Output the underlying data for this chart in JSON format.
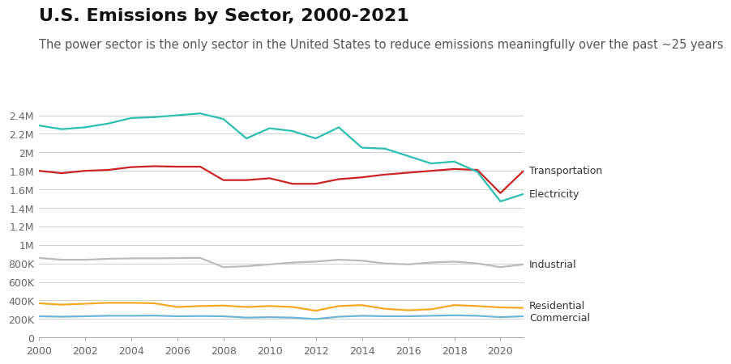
{
  "title": "U.S. Emissions by Sector, 2000-2021",
  "subtitle": "The power sector is the only sector in the United States to reduce emissions meaningfully over the past ~25 years",
  "years": [
    2000,
    2001,
    2002,
    2003,
    2004,
    2005,
    2006,
    2007,
    2008,
    2009,
    2010,
    2011,
    2012,
    2013,
    2014,
    2015,
    2016,
    2017,
    2018,
    2019,
    2020,
    2021
  ],
  "series": {
    "Transportation": {
      "color": "#cc2222",
      "values": [
        1800000,
        1775000,
        1800000,
        1810000,
        1840000,
        1850000,
        1845000,
        1845000,
        1700000,
        1700000,
        1720000,
        1660000,
        1660000,
        1710000,
        1730000,
        1760000,
        1780000,
        1800000,
        1820000,
        1810000,
        1560000,
        1800000
      ]
    },
    "Electricity": {
      "color": "#2cbfb1",
      "values": [
        2290000,
        2250000,
        2270000,
        2310000,
        2370000,
        2380000,
        2400000,
        2420000,
        2360000,
        2150000,
        2260000,
        2230000,
        2150000,
        2270000,
        2050000,
        2040000,
        1960000,
        1880000,
        1900000,
        1790000,
        1470000,
        1550000
      ]
    },
    "Industrial": {
      "color": "#bbbbbb",
      "values": [
        860000,
        840000,
        840000,
        850000,
        855000,
        855000,
        858000,
        860000,
        760000,
        770000,
        790000,
        810000,
        820000,
        840000,
        830000,
        800000,
        790000,
        810000,
        820000,
        800000,
        760000,
        790000
      ]
    },
    "Residential": {
      "color": "#f5a623",
      "values": [
        370000,
        355000,
        365000,
        375000,
        375000,
        370000,
        330000,
        340000,
        345000,
        330000,
        340000,
        330000,
        290000,
        340000,
        350000,
        310000,
        295000,
        305000,
        350000,
        340000,
        325000,
        320000
      ]
    },
    "Commercial": {
      "color": "#6ab5d8",
      "values": [
        230000,
        225000,
        230000,
        235000,
        235000,
        237000,
        230000,
        232000,
        230000,
        215000,
        220000,
        215000,
        200000,
        225000,
        235000,
        230000,
        230000,
        235000,
        240000,
        235000,
        220000,
        230000
      ]
    }
  },
  "ylim": [
    0,
    2500000
  ],
  "yticks": [
    0,
    200000,
    400000,
    600000,
    800000,
    1000000,
    1200000,
    1400000,
    1600000,
    1800000,
    2000000,
    2200000,
    2400000
  ],
  "ytick_labels": [
    "0",
    "200K",
    "400K",
    "600K",
    "800K",
    "1M",
    "1.2M",
    "1.4M",
    "1.6M",
    "1.8M",
    "2M",
    "2.2M",
    "2.4M"
  ],
  "xlim": [
    2000,
    2021
  ],
  "xticks": [
    2000,
    2002,
    2004,
    2006,
    2008,
    2010,
    2012,
    2014,
    2016,
    2018,
    2020
  ],
  "legend_order": [
    "Transportation",
    "Electricity",
    "Industrial",
    "Residential",
    "Commercial"
  ],
  "label_y_offsets": {
    "Transportation": 1800000,
    "Electricity": 1550000,
    "Industrial": 790000,
    "Residential": 325000,
    "Commercial": 230000
  },
  "background_color": "#ffffff",
  "grid_color": "#d0d0d0",
  "title_fontsize": 16,
  "subtitle_fontsize": 10.5,
  "tick_fontsize": 9
}
